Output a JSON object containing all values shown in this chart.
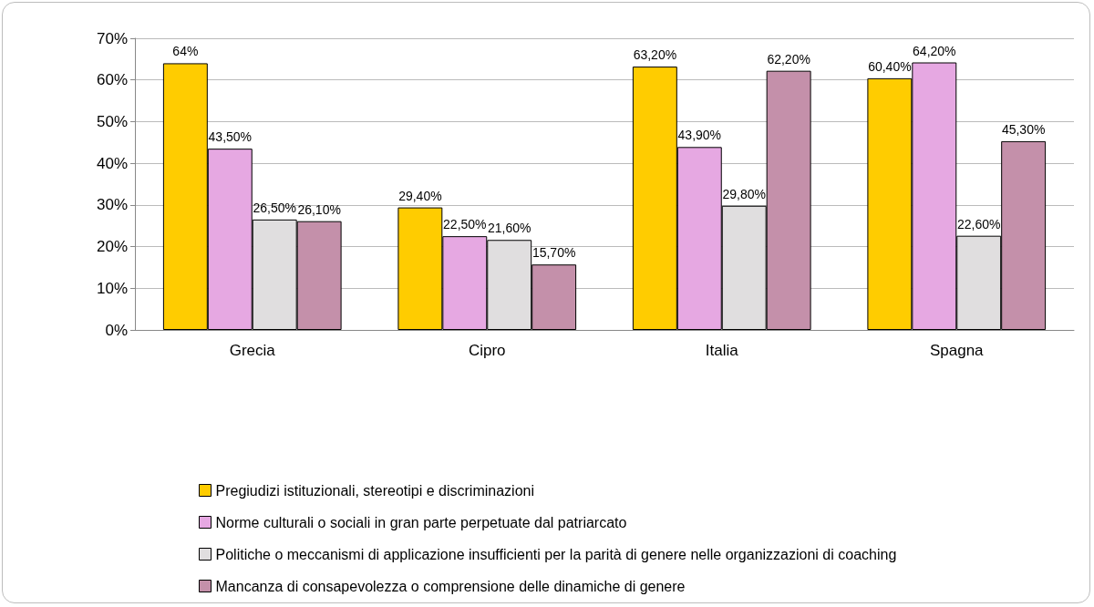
{
  "chart_data": {
    "type": "bar",
    "categories": [
      "Grecia",
      "Cipro",
      "Italia",
      "Spagna"
    ],
    "series": [
      {
        "name": "Pregiudizi istituzionali, stereotipi e discriminazioni",
        "color": "#ffcc00",
        "values": [
          64,
          29.4,
          63.2,
          60.4
        ],
        "value_labels": [
          "64%",
          "29,40%",
          "63,20%",
          "60,40%"
        ]
      },
      {
        "name": "Norme culturali o sociali in gran parte perpetuate dal patriarcato",
        "color": "#e6a8e2",
        "values": [
          43.5,
          22.5,
          43.9,
          64.2
        ],
        "value_labels": [
          "43,50%",
          "22,50%",
          "43,90%",
          "64,20%"
        ]
      },
      {
        "name": "Politiche o meccanismi di applicazione insufficienti per la parità di genere nelle organizzazioni di coaching",
        "color": "#e0dedf",
        "values": [
          26.5,
          21.6,
          29.8,
          22.6
        ],
        "value_labels": [
          "26,50%",
          "21,60%",
          "29,80%",
          "22,60%"
        ]
      },
      {
        "name": "Mancanza di consapevolezza o comprensione delle dinamiche di genere",
        "color": "#c490aa",
        "values": [
          26.1,
          15.7,
          62.2,
          45.3
        ],
        "value_labels": [
          "26,10%",
          "15,70%",
          "62,20%",
          "45,30%"
        ]
      }
    ],
    "ylim": [
      0,
      70
    ],
    "yticks": [
      {
        "value": 0,
        "label": "0%"
      },
      {
        "value": 10,
        "label": "10%"
      },
      {
        "value": 20,
        "label": "20%"
      },
      {
        "value": 30,
        "label": "30%"
      },
      {
        "value": 40,
        "label": "40%"
      },
      {
        "value": 50,
        "label": "50%"
      },
      {
        "value": 60,
        "label": "60%"
      },
      {
        "value": 70,
        "label": "70%"
      }
    ],
    "grid": "y",
    "legend": "bottom left"
  }
}
